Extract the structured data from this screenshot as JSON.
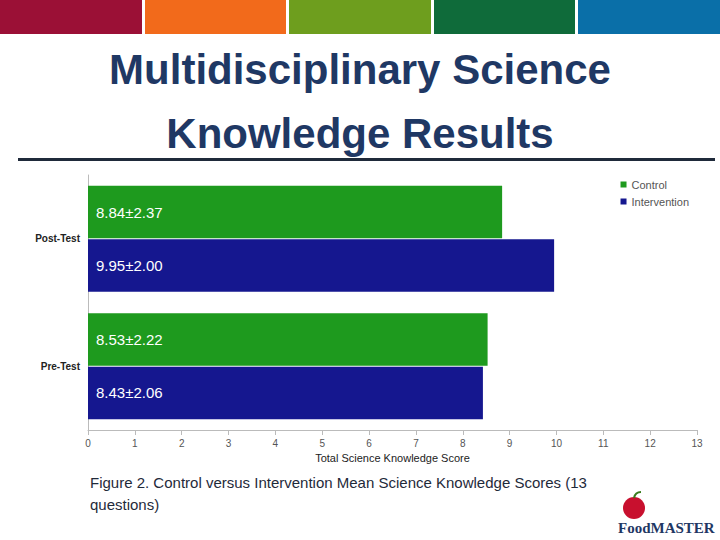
{
  "chart_data": {
    "type": "bar",
    "orientation": "horizontal",
    "title": "Multidisciplinary Science Knowledge Results",
    "caption": "Figure 2. Control versus Intervention Mean Science Knowledge Scores (13 questions)",
    "x_label": "Total Science Knowledge Score",
    "categories": [
      "Pre-Test",
      "Post-Test"
    ],
    "series": [
      {
        "name": "Control",
        "color": "#1e9a1e",
        "values": [
          8.53,
          8.84
        ],
        "value_labels": [
          "8.53±2.22",
          "8.84±2.37"
        ]
      },
      {
        "name": "Intervention",
        "color": "#15178f",
        "values": [
          8.43,
          9.95
        ],
        "value_labels": [
          "8.43±2.06",
          "9.95±2.00"
        ]
      }
    ],
    "xlim": [
      0,
      13
    ],
    "xticks": [
      0,
      1,
      2,
      3,
      4,
      5,
      6,
      7,
      8,
      9,
      10,
      11,
      12,
      13
    ],
    "grid": false,
    "legend": "top-right",
    "data_labels": true
  },
  "logo": "FoodMASTER"
}
